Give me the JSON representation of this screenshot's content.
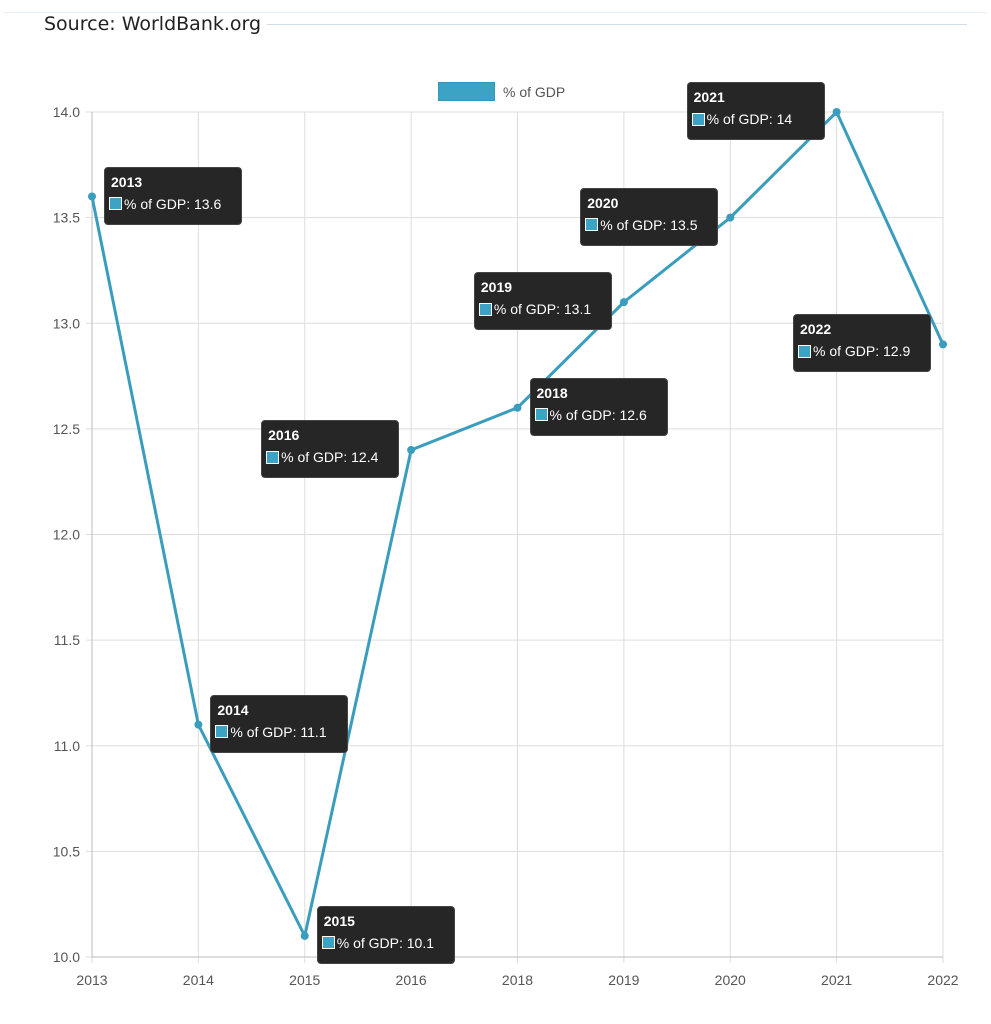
{
  "header": {
    "source": "Source: WorldBank.org"
  },
  "chart_data": {
    "type": "line",
    "categories": [
      "2013",
      "2014",
      "2015",
      "2016",
      "2018",
      "2019",
      "2020",
      "2021",
      "2022"
    ],
    "series": [
      {
        "name": "% of GDP",
        "values": [
          13.6,
          11.1,
          10.1,
          12.4,
          12.6,
          13.1,
          13.5,
          14,
          12.9
        ]
      }
    ],
    "ylim": [
      10.0,
      14.0
    ],
    "yticks": [
      "10.0",
      "10.5",
      "11.0",
      "11.5",
      "12.0",
      "12.5",
      "13.0",
      "13.5",
      "14.0"
    ],
    "grid": true,
    "legend": "top-center",
    "color": "#3a9dbd",
    "tooltips": [
      {
        "title": "2013",
        "label": "% of GDP: 13.6"
      },
      {
        "title": "2014",
        "label": "% of GDP: 11.1"
      },
      {
        "title": "2015",
        "label": "% of GDP: 10.1"
      },
      {
        "title": "2016",
        "label": "% of GDP: 12.4"
      },
      {
        "title": "2018",
        "label": "% of GDP: 12.6"
      },
      {
        "title": "2019",
        "label": "% of GDP: 13.1"
      },
      {
        "title": "2020",
        "label": "% of GDP: 13.5"
      },
      {
        "title": "2021",
        "label": "% of GDP: 14"
      },
      {
        "title": "2022",
        "label": "% of GDP: 12.9"
      }
    ]
  }
}
